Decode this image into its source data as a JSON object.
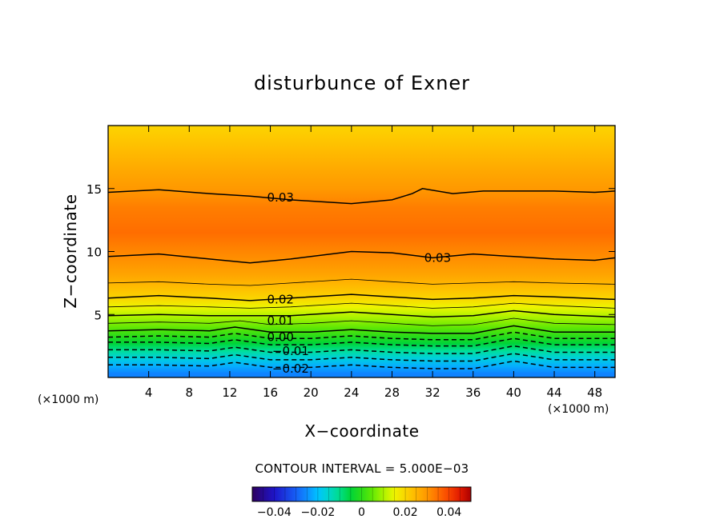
{
  "chart_data": {
    "type": "contour",
    "title": "disturbunce of Exner",
    "xlabel": "X−coordinate",
    "ylabel": "Z−coordinate",
    "x_unit": "(×1000 m)",
    "y_unit": "(×1000 m)",
    "xlim": [
      0,
      50
    ],
    "ylim": [
      0,
      20
    ],
    "x_ticks": [
      4,
      8,
      12,
      16,
      20,
      24,
      28,
      32,
      36,
      40,
      44,
      48
    ],
    "x_tick_labels": [
      "4",
      "8",
      "12",
      "16",
      "20",
      "24",
      "28",
      "32",
      "36",
      "40",
      "44",
      "48"
    ],
    "y_ticks": [
      5,
      10,
      15
    ],
    "y_tick_labels": [
      "5",
      "10",
      "15"
    ],
    "contour_interval_text": "CONTOUR INTERVAL = 5.000E−03",
    "contour_interval": 0.005,
    "color_range": [
      -0.05,
      0.05
    ],
    "colorbar_ticks": [
      -0.04,
      -0.02,
      0,
      0.02,
      0.04
    ],
    "colorbar_tick_labels": [
      "−0.04",
      "−0.02",
      "0",
      "0.02",
      "0.04"
    ],
    "field_levels": [
      {
        "z": 0.3,
        "value": -0.026
      },
      {
        "z": 0.9,
        "value": -0.022
      },
      {
        "z": 1.5,
        "value": -0.017
      },
      {
        "z": 2.1,
        "value": -0.011
      },
      {
        "z": 2.7,
        "value": -0.005
      },
      {
        "z": 3.3,
        "value": 0.0
      },
      {
        "z": 4.0,
        "value": 0.005
      },
      {
        "z": 4.8,
        "value": 0.01
      },
      {
        "z": 5.6,
        "value": 0.015
      },
      {
        "z": 6.3,
        "value": 0.02
      },
      {
        "z": 7.2,
        "value": 0.024
      },
      {
        "z": 8.2,
        "value": 0.028
      },
      {
        "z": 9.5,
        "value": 0.031
      },
      {
        "z": 11.5,
        "value": 0.035
      },
      {
        "z": 13.5,
        "value": 0.033
      },
      {
        "z": 15.0,
        "value": 0.0295
      },
      {
        "z": 16.5,
        "value": 0.027
      },
      {
        "z": 18.0,
        "value": 0.024
      },
      {
        "z": 19.5,
        "value": 0.021
      },
      {
        "z": 20.0,
        "value": 0.02
      }
    ],
    "contours": [
      {
        "level": -0.025,
        "style": "dashed",
        "points": [
          [
            0,
            1.0
          ],
          [
            5,
            1.0
          ],
          [
            10,
            0.9
          ],
          [
            12.5,
            1.2
          ],
          [
            16,
            0.8
          ],
          [
            20,
            0.8
          ],
          [
            24,
            1.0
          ],
          [
            28,
            0.8
          ],
          [
            32,
            0.7
          ],
          [
            36,
            0.7
          ],
          [
            40,
            1.3
          ],
          [
            44,
            0.8
          ],
          [
            50,
            0.8
          ]
        ]
      },
      {
        "level": -0.02,
        "style": "dashed",
        "points": [
          [
            0,
            1.6
          ],
          [
            5,
            1.6
          ],
          [
            10,
            1.5
          ],
          [
            12.5,
            1.8
          ],
          [
            16,
            1.4
          ],
          [
            20,
            1.4
          ],
          [
            24,
            1.6
          ],
          [
            28,
            1.4
          ],
          [
            32,
            1.3
          ],
          [
            36,
            1.3
          ],
          [
            40,
            1.9
          ],
          [
            44,
            1.4
          ],
          [
            50,
            1.4
          ]
        ]
      },
      {
        "level": -0.015,
        "style": "dashed",
        "points": [
          [
            0,
            2.2
          ],
          [
            5,
            2.2
          ],
          [
            10,
            2.1
          ],
          [
            12.5,
            2.4
          ],
          [
            16,
            2.0
          ],
          [
            20,
            2.0
          ],
          [
            24,
            2.2
          ],
          [
            28,
            2.0
          ],
          [
            32,
            1.9
          ],
          [
            36,
            1.9
          ],
          [
            40,
            2.5
          ],
          [
            44,
            2.0
          ],
          [
            50,
            2.0
          ]
        ]
      },
      {
        "level": -0.01,
        "style": "dashed",
        "points": [
          [
            0,
            2.8
          ],
          [
            5,
            2.8
          ],
          [
            10,
            2.7
          ],
          [
            12.5,
            3.0
          ],
          [
            16,
            2.6
          ],
          [
            20,
            2.6
          ],
          [
            24,
            2.8
          ],
          [
            28,
            2.6
          ],
          [
            32,
            2.5
          ],
          [
            36,
            2.5
          ],
          [
            40,
            3.1
          ],
          [
            44,
            2.6
          ],
          [
            50,
            2.6
          ]
        ]
      },
      {
        "level": -0.005,
        "style": "dashed",
        "points": [
          [
            0,
            3.2
          ],
          [
            5,
            3.3
          ],
          [
            10,
            3.2
          ],
          [
            12.5,
            3.5
          ],
          [
            16,
            3.1
          ],
          [
            20,
            3.1
          ],
          [
            24,
            3.3
          ],
          [
            28,
            3.1
          ],
          [
            32,
            3.0
          ],
          [
            36,
            3.0
          ],
          [
            40,
            3.6
          ],
          [
            44,
            3.1
          ],
          [
            50,
            3.1
          ]
        ]
      },
      {
        "level": 0.0,
        "style": "solid",
        "points": [
          [
            0,
            3.7
          ],
          [
            5,
            3.8
          ],
          [
            10,
            3.7
          ],
          [
            12.5,
            4.0
          ],
          [
            16,
            3.6
          ],
          [
            20,
            3.6
          ],
          [
            24,
            3.8
          ],
          [
            28,
            3.6
          ],
          [
            32,
            3.5
          ],
          [
            36,
            3.5
          ],
          [
            40,
            4.1
          ],
          [
            44,
            3.6
          ],
          [
            50,
            3.6
          ]
        ]
      },
      {
        "level": 0.005,
        "style": "thin",
        "points": [
          [
            0,
            4.3
          ],
          [
            5,
            4.4
          ],
          [
            10,
            4.3
          ],
          [
            13,
            4.5
          ],
          [
            16,
            4.2
          ],
          [
            20,
            4.3
          ],
          [
            24,
            4.5
          ],
          [
            28,
            4.3
          ],
          [
            32,
            4.1
          ],
          [
            36,
            4.2
          ],
          [
            40,
            4.7
          ],
          [
            44,
            4.3
          ],
          [
            50,
            4.2
          ]
        ]
      },
      {
        "level": 0.01,
        "style": "solid",
        "points": [
          [
            0,
            4.9
          ],
          [
            5,
            5.0
          ],
          [
            10,
            4.9
          ],
          [
            14,
            4.9
          ],
          [
            18,
            4.9
          ],
          [
            24,
            5.2
          ],
          [
            28,
            5.0
          ],
          [
            32,
            4.8
          ],
          [
            36,
            4.9
          ],
          [
            40,
            5.3
          ],
          [
            44,
            5.0
          ],
          [
            50,
            4.8
          ]
        ]
      },
      {
        "level": 0.015,
        "style": "thin",
        "points": [
          [
            0,
            5.6
          ],
          [
            5,
            5.7
          ],
          [
            10,
            5.6
          ],
          [
            14,
            5.5
          ],
          [
            18,
            5.6
          ],
          [
            24,
            5.9
          ],
          [
            28,
            5.7
          ],
          [
            32,
            5.5
          ],
          [
            36,
            5.6
          ],
          [
            40,
            5.9
          ],
          [
            44,
            5.7
          ],
          [
            50,
            5.5
          ]
        ]
      },
      {
        "level": 0.02,
        "style": "solid",
        "points": [
          [
            0,
            6.3
          ],
          [
            5,
            6.5
          ],
          [
            10,
            6.3
          ],
          [
            14,
            6.1
          ],
          [
            18,
            6.3
          ],
          [
            24,
            6.6
          ],
          [
            28,
            6.4
          ],
          [
            32,
            6.2
          ],
          [
            36,
            6.3
          ],
          [
            40,
            6.5
          ],
          [
            44,
            6.4
          ],
          [
            50,
            6.2
          ]
        ]
      },
      {
        "level": 0.025,
        "style": "thin",
        "points": [
          [
            0,
            7.5
          ],
          [
            5,
            7.6
          ],
          [
            10,
            7.4
          ],
          [
            14,
            7.3
          ],
          [
            18,
            7.5
          ],
          [
            24,
            7.8
          ],
          [
            28,
            7.6
          ],
          [
            32,
            7.4
          ],
          [
            36,
            7.5
          ],
          [
            40,
            7.6
          ],
          [
            44,
            7.5
          ],
          [
            50,
            7.4
          ]
        ]
      },
      {
        "level": 0.03,
        "style": "solid",
        "points": [
          [
            0,
            9.6
          ],
          [
            5,
            9.8
          ],
          [
            10,
            9.4
          ],
          [
            14,
            9.1
          ],
          [
            18,
            9.4
          ],
          [
            24,
            10.0
          ],
          [
            28,
            9.9
          ],
          [
            32,
            9.5
          ],
          [
            36,
            9.8
          ],
          [
            40,
            9.6
          ],
          [
            44,
            9.4
          ],
          [
            48,
            9.3
          ],
          [
            50,
            9.5
          ]
        ]
      },
      {
        "level": 0.03,
        "style": "solid",
        "points": [
          [
            0,
            14.7
          ],
          [
            5,
            14.9
          ],
          [
            10,
            14.6
          ],
          [
            14,
            14.4
          ],
          [
            18,
            14.1
          ],
          [
            24,
            13.8
          ],
          [
            28,
            14.1
          ],
          [
            30,
            14.6
          ],
          [
            31,
            15.0
          ],
          [
            34,
            14.6
          ],
          [
            37,
            14.8
          ],
          [
            40,
            14.8
          ],
          [
            44,
            14.8
          ],
          [
            48,
            14.7
          ],
          [
            50,
            14.8
          ]
        ]
      }
    ],
    "contour_labels": [
      {
        "text": "0.03",
        "x": 17.0,
        "z": 14.3
      },
      {
        "text": "0.03",
        "x": 32.5,
        "z": 9.5
      },
      {
        "text": "0.02",
        "x": 17.0,
        "z": 6.2
      },
      {
        "text": "0.01",
        "x": 17.0,
        "z": 4.5
      },
      {
        "text": "0.00",
        "x": 17.0,
        "z": 3.2
      },
      {
        "text": "−0.01",
        "x": 18.0,
        "z": 2.1
      },
      {
        "text": "−0.02",
        "x": 18.0,
        "z": 0.7
      }
    ]
  }
}
